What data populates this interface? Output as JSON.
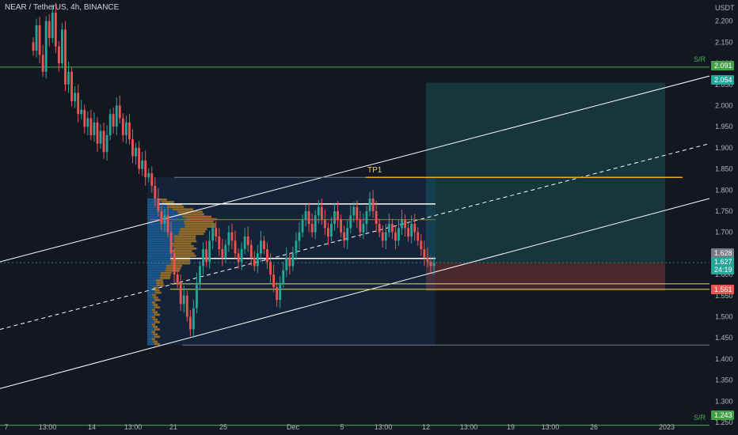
{
  "header": {
    "title": "NEAR / TetherUS, 4h, BINANCE"
  },
  "chart_data": {
    "type": "candlestick",
    "title": "NEAR / TetherUS, 4h, BINANCE",
    "y_unit": "USDT",
    "ylim": [
      1.22,
      2.25
    ],
    "y_ticks": [
      "2.200",
      "2.150",
      "2.100",
      "2.050",
      "2.000",
      "1.950",
      "1.900",
      "1.850",
      "1.800",
      "1.750",
      "1.700",
      "1.650",
      "1.600",
      "1.550",
      "1.500",
      "1.450",
      "1.400",
      "1.350",
      "1.300",
      "1.250"
    ],
    "y_tick_values": [
      2.2,
      2.15,
      2.1,
      2.05,
      2.0,
      1.95,
      1.9,
      1.85,
      1.8,
      1.75,
      1.7,
      1.65,
      1.6,
      1.55,
      1.5,
      1.45,
      1.4,
      1.35,
      1.3,
      1.25
    ],
    "x_ticks": [
      "7",
      "13:00",
      "14",
      "13:00",
      "21",
      "25",
      "Dec",
      "5",
      "13:00",
      "12",
      "13:00",
      "19",
      "13:00",
      "26",
      "2023"
    ],
    "price_tags": [
      {
        "label": "2.091",
        "value": 2.091,
        "color": "#43a047"
      },
      {
        "label": "2.054",
        "value": 2.054,
        "color": "#26a69a"
      },
      {
        "label": "1.628",
        "value": 1.628,
        "color": "#787b86"
      },
      {
        "label": "1.627",
        "value": 1.627,
        "color": "#26a69a"
      },
      {
        "label": "24:19",
        "value": 1.607,
        "color": "#26a69a"
      },
      {
        "label": "1.561",
        "value": 1.561,
        "color": "#ef5350"
      },
      {
        "label": "1.243",
        "value": 1.243,
        "color": "#43a047"
      }
    ],
    "annotations": {
      "sr_label": "S/R",
      "tp_label": "TP1",
      "support_resistance_levels": [
        2.091,
        1.243
      ],
      "white_levels": [
        1.767,
        1.638
      ],
      "red_level": 1.73,
      "orange_level": 1.83,
      "yellow_levels": [
        1.578,
        1.565
      ],
      "grey_levels": [
        1.83,
        1.433
      ],
      "position": {
        "entry": 1.628,
        "take_profit": 2.054,
        "stop_loss": 1.561
      }
    },
    "close_series": [
      2.13,
      2.19,
      2.12,
      2.08,
      2.2,
      2.16,
      2.22,
      2.14,
      2.1,
      2.18,
      2.05,
      2.08,
      2.01,
      2.03,
      1.98,
      1.99,
      1.95,
      1.97,
      1.93,
      1.96,
      1.91,
      1.94,
      1.89,
      1.93,
      1.98,
      1.95,
      2.0,
      1.97,
      1.93,
      1.96,
      1.92,
      1.88,
      1.9,
      1.85,
      1.87,
      1.83,
      1.84,
      1.81,
      1.78,
      1.75,
      1.72,
      1.74,
      1.7,
      1.65,
      1.6,
      1.58,
      1.53,
      1.55,
      1.5,
      1.47,
      1.52,
      1.58,
      1.62,
      1.66,
      1.63,
      1.68,
      1.71,
      1.69,
      1.66,
      1.64,
      1.67,
      1.7,
      1.68,
      1.65,
      1.63,
      1.66,
      1.69,
      1.67,
      1.64,
      1.62,
      1.65,
      1.68,
      1.66,
      1.63,
      1.6,
      1.57,
      1.54,
      1.58,
      1.61,
      1.64,
      1.62,
      1.65,
      1.68,
      1.7,
      1.73,
      1.75,
      1.72,
      1.7,
      1.74,
      1.76,
      1.73,
      1.71,
      1.69,
      1.72,
      1.75,
      1.73,
      1.7,
      1.68,
      1.71,
      1.74,
      1.76,
      1.73,
      1.7,
      1.72,
      1.75,
      1.78,
      1.75,
      1.72,
      1.7,
      1.68,
      1.7,
      1.72,
      1.7,
      1.68,
      1.71,
      1.73,
      1.71,
      1.69,
      1.72,
      1.7,
      1.68,
      1.66,
      1.64,
      1.63,
      1.62,
      1.627
    ]
  },
  "colors": {
    "background": "#131722",
    "bull": "#26a69a",
    "bear": "#ef5350",
    "sr": "#4caf50",
    "white": "#ffffff",
    "red_line": "#ff3b3b",
    "orange": "#f5a623",
    "yellow": "#e6d85a",
    "grey": "#787b86"
  }
}
